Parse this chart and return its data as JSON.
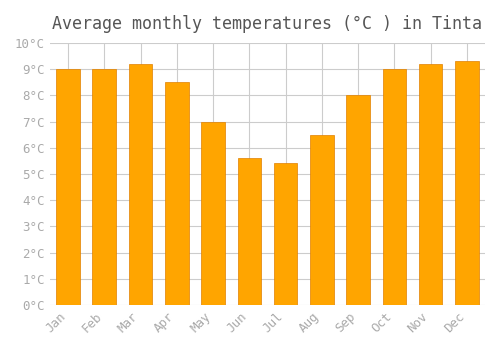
{
  "title": "Average monthly temperatures (°C ) in Tinta",
  "months": [
    "Jan",
    "Feb",
    "Mar",
    "Apr",
    "May",
    "Jun",
    "Jul",
    "Aug",
    "Sep",
    "Oct",
    "Nov",
    "Dec"
  ],
  "values": [
    9.0,
    9.0,
    9.2,
    8.5,
    7.0,
    5.6,
    5.4,
    6.5,
    8.0,
    9.0,
    9.2,
    9.3
  ],
  "bar_color": "#FFA500",
  "bar_edge_color": "#E08000",
  "ylim": [
    0,
    10
  ],
  "yticks": [
    0,
    1,
    2,
    3,
    4,
    5,
    6,
    7,
    8,
    9,
    10
  ],
  "ytick_labels": [
    "0°C",
    "1°C",
    "2°C",
    "3°C",
    "4°C",
    "5°C",
    "6°C",
    "7°C",
    "8°C",
    "9°C",
    "10°C"
  ],
  "background_color": "#ffffff",
  "grid_color": "#cccccc",
  "title_fontsize": 12,
  "tick_fontsize": 9,
  "font_family": "monospace"
}
